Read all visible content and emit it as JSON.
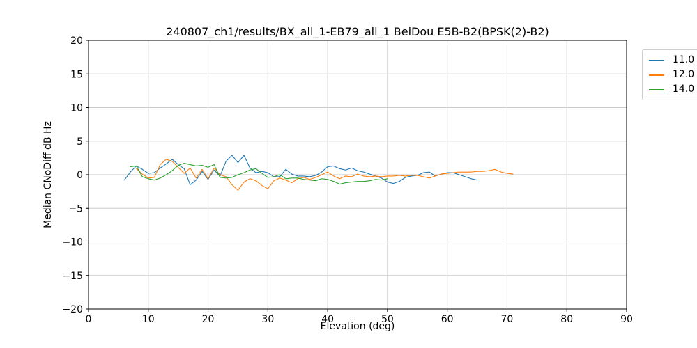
{
  "chart_data": {
    "type": "line",
    "title": "240807_ch1/results/BX_all_1-EB79_all_1 BeiDou E5B-B2(BPSK(2)-B2)",
    "xlabel": "Elevation (deg)",
    "ylabel": "Median CNoDiff dB Hz",
    "xlim": [
      0,
      90
    ],
    "ylim": [
      -20,
      20
    ],
    "xticks": [
      0,
      10,
      20,
      30,
      40,
      50,
      60,
      70,
      80,
      90
    ],
    "yticks": [
      -20,
      -15,
      -10,
      -5,
      0,
      5,
      10,
      15,
      20
    ],
    "grid": true,
    "legend_position": "outside-right",
    "colors": {
      "grid": "#c9c9c9",
      "spine": "#000000",
      "background": "#ffffff"
    },
    "series": [
      {
        "name": "11.0",
        "color": "#1f77b4",
        "x": [
          6,
          7,
          8,
          9,
          10,
          11,
          12,
          13,
          14,
          15,
          16,
          17,
          18,
          19,
          20,
          21,
          22,
          23,
          24,
          25,
          26,
          27,
          28,
          29,
          30,
          31,
          32,
          33,
          34,
          35,
          36,
          37,
          38,
          39,
          40,
          41,
          42,
          43,
          44,
          45,
          46,
          47,
          48,
          49,
          50,
          51,
          52,
          53,
          54,
          55,
          56,
          57,
          58,
          59,
          60,
          61,
          62,
          63,
          64,
          65
        ],
        "y": [
          -0.8,
          0.4,
          1.3,
          0.8,
          0.2,
          0.3,
          1.0,
          1.6,
          2.3,
          1.5,
          0.9,
          -1.5,
          -0.8,
          0.5,
          -0.7,
          0.7,
          -0.2,
          2.0,
          2.9,
          1.8,
          2.9,
          1.0,
          0.3,
          0.5,
          0.3,
          -0.3,
          -0.3,
          0.8,
          0.1,
          -0.2,
          -0.2,
          -0.3,
          -0.1,
          0.4,
          1.2,
          1.3,
          0.9,
          0.7,
          1.0,
          0.6,
          0.4,
          0.1,
          -0.2,
          -0.5,
          -1.1,
          -1.3,
          -1.0,
          -0.4,
          -0.2,
          -0.1,
          0.3,
          0.4,
          -0.2,
          0.1,
          0.3,
          0.3,
          0.0,
          -0.3,
          -0.6,
          -0.8
        ]
      },
      {
        "name": "12.0",
        "color": "#ff7f0e",
        "x": [
          8,
          9,
          10,
          11,
          12,
          13,
          14,
          15,
          16,
          17,
          18,
          19,
          20,
          21,
          22,
          23,
          24,
          25,
          26,
          27,
          28,
          29,
          30,
          31,
          32,
          33,
          34,
          35,
          36,
          37,
          38,
          39,
          40,
          41,
          42,
          43,
          44,
          45,
          46,
          47,
          48,
          49,
          50,
          51,
          52,
          53,
          54,
          55,
          56,
          57,
          58,
          59,
          60,
          61,
          62,
          63,
          64,
          65,
          66,
          67,
          68,
          69,
          70,
          71
        ],
        "y": [
          0.9,
          0.1,
          -0.5,
          -0.4,
          1.5,
          2.3,
          2.0,
          1.1,
          0.2,
          1.0,
          -0.5,
          0.8,
          -0.6,
          1.0,
          0.0,
          -0.3,
          -1.5,
          -2.3,
          -1.1,
          -0.6,
          -0.9,
          -1.6,
          -2.1,
          -0.9,
          -0.5,
          -0.8,
          -1.2,
          -0.6,
          -0.4,
          -0.7,
          -0.4,
          0.0,
          0.4,
          -0.2,
          -0.6,
          -0.2,
          -0.3,
          0.1,
          -0.2,
          -0.3,
          -0.2,
          -0.3,
          -0.2,
          -0.2,
          -0.1,
          -0.2,
          -0.1,
          -0.1,
          -0.3,
          -0.5,
          -0.2,
          0.1,
          0.2,
          0.3,
          0.4,
          0.4,
          0.4,
          0.5,
          0.5,
          0.6,
          0.8,
          0.4,
          0.2,
          0.1
        ]
      },
      {
        "name": "14.0",
        "color": "#2ca02c",
        "x": [
          7,
          8,
          9,
          10,
          11,
          12,
          13,
          14,
          15,
          16,
          17,
          18,
          19,
          20,
          21,
          22,
          23,
          24,
          25,
          26,
          27,
          28,
          29,
          30,
          31,
          32,
          33,
          34,
          35,
          36,
          37,
          38,
          39,
          40,
          41,
          42,
          43,
          44,
          45,
          46,
          47,
          48,
          49,
          50
        ],
        "y": [
          1.2,
          1.3,
          -0.3,
          -0.6,
          -0.8,
          -0.5,
          0.0,
          0.6,
          1.4,
          1.7,
          1.5,
          1.3,
          1.4,
          1.1,
          1.5,
          -0.4,
          -0.5,
          -0.4,
          0.0,
          0.3,
          0.7,
          0.9,
          0.2,
          -0.4,
          -0.3,
          0.0,
          -0.6,
          -0.5,
          -0.5,
          -0.7,
          -0.8,
          -0.9,
          -0.6,
          -0.7,
          -1.0,
          -1.4,
          -1.2,
          -1.1,
          -1.0,
          -1.0,
          -0.9,
          -0.7,
          -0.8,
          -0.6
        ]
      }
    ]
  }
}
